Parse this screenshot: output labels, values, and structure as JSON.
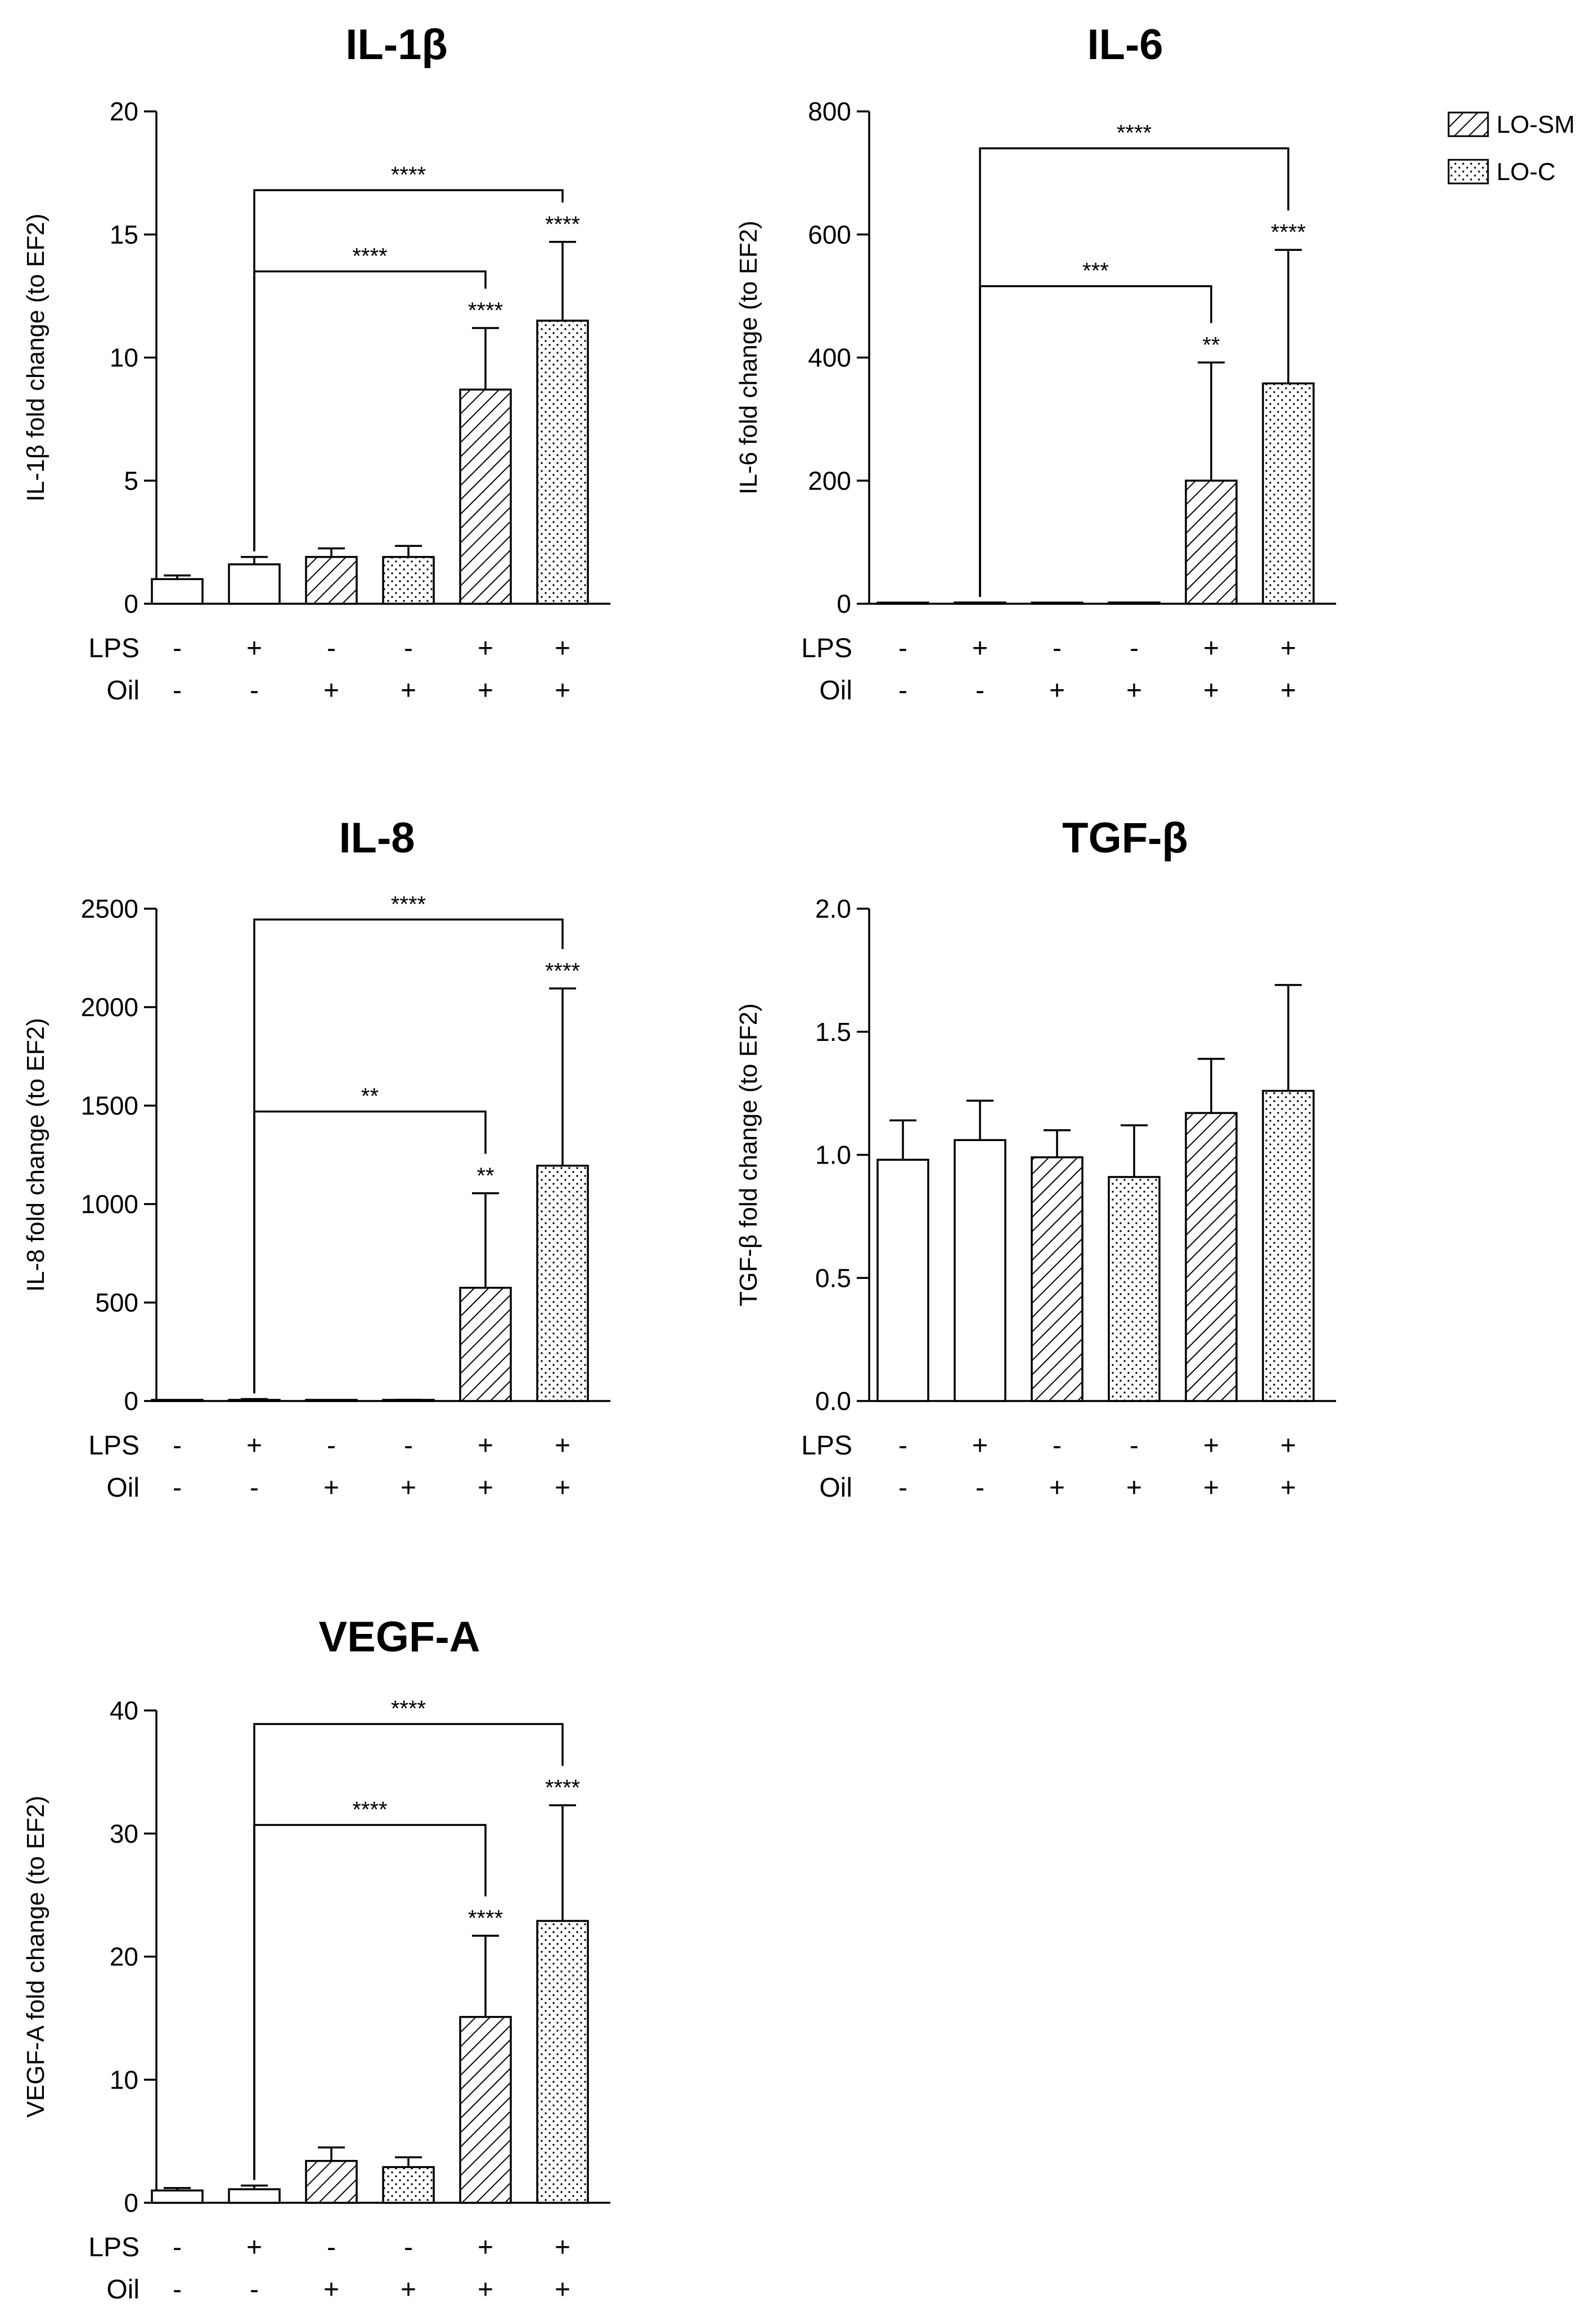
{
  "legend": {
    "items": [
      {
        "label": "LO-SM",
        "pattern": "hatch"
      },
      {
        "label": "LO-C",
        "pattern": "dots"
      }
    ]
  },
  "row_labels": {
    "lps": "LPS",
    "oil": "Oil"
  },
  "conditions": {
    "lps": [
      "-",
      "+",
      "-",
      "-",
      "+",
      "+"
    ],
    "oil": [
      "-",
      "-",
      "+",
      "+",
      "+",
      "+"
    ]
  },
  "colors": {
    "ink": "#000000",
    "bar_fill": "#ffffff"
  },
  "chart_data": [
    {
      "id": "il1b",
      "type": "bar",
      "title": "IL-1β",
      "ylabel": "IL-1β fold change (to EF2)",
      "ylim": [
        0,
        20
      ],
      "yticks": [
        0,
        5,
        10,
        15,
        20
      ],
      "ytick_labels": [
        "0",
        "5",
        "10",
        "15",
        "20"
      ],
      "values": [
        1.0,
        1.6,
        1.9,
        1.9,
        8.7,
        11.5
      ],
      "errors": [
        0.15,
        0.3,
        0.35,
        0.45,
        2.5,
        3.2
      ],
      "bar_stars": [
        "",
        "",
        "",
        "",
        "****",
        "****"
      ],
      "brackets": [
        {
          "from": 1,
          "to": 4,
          "y": 13.5,
          "label": "****"
        },
        {
          "from": 1,
          "to": 5,
          "y": 16.8,
          "label": "****"
        }
      ]
    },
    {
      "id": "il6",
      "type": "bar",
      "title": "IL-6",
      "ylabel": "IL-6 fold change (to EF2)",
      "ylim": [
        0,
        800
      ],
      "yticks": [
        0,
        200,
        400,
        600,
        800
      ],
      "ytick_labels": [
        "0",
        "200",
        "400",
        "600",
        "800"
      ],
      "values": [
        1,
        2,
        1.5,
        2,
        200,
        358
      ],
      "errors": [
        0,
        0,
        0,
        0,
        192,
        217
      ],
      "bar_stars": [
        "",
        "",
        "",
        "",
        "**",
        "****"
      ],
      "brackets": [
        {
          "from": 1,
          "to": 4,
          "y": 516,
          "label": "***"
        },
        {
          "from": 1,
          "to": 5,
          "y": 740,
          "label": "****"
        }
      ]
    },
    {
      "id": "il8",
      "type": "bar",
      "title": "IL-8",
      "ylabel": "IL-8 fold change (to EF2)",
      "ylim": [
        0,
        2500
      ],
      "yticks": [
        0,
        500,
        1000,
        1500,
        2000,
        2500
      ],
      "ytick_labels": [
        "0",
        "500",
        "1000",
        "1500",
        "2000",
        "2500"
      ],
      "values": [
        0,
        5,
        2,
        3,
        575,
        1195
      ],
      "errors": [
        0,
        5,
        0,
        3,
        480,
        900
      ],
      "bar_stars": [
        "",
        "",
        "",
        "",
        "**",
        "****"
      ],
      "brackets": [
        {
          "from": 1,
          "to": 4,
          "y": 1470,
          "label": "**"
        },
        {
          "from": 1,
          "to": 5,
          "y": 2445,
          "label": "****"
        }
      ]
    },
    {
      "id": "tgfb",
      "type": "bar",
      "title": "TGF-β",
      "ylabel": "TGF-β fold change (to EF2)",
      "ylim": [
        0,
        2
      ],
      "yticks": [
        0,
        0.5,
        1,
        1.5,
        2
      ],
      "ytick_labels": [
        "0.0",
        "0.5",
        "1.0",
        "1.5",
        "2.0"
      ],
      "values": [
        0.98,
        1.06,
        0.99,
        0.91,
        1.17,
        1.26
      ],
      "errors": [
        0.16,
        0.16,
        0.11,
        0.21,
        0.22,
        0.43
      ],
      "bar_stars": [
        "",
        "",
        "",
        "",
        "",
        ""
      ],
      "brackets": []
    },
    {
      "id": "vegfa",
      "type": "bar",
      "title": "VEGF-A",
      "ylabel": "VEGF-A fold change (to EF2)",
      "ylim": [
        0,
        40
      ],
      "yticks": [
        0,
        10,
        20,
        30,
        40
      ],
      "ytick_labels": [
        "0",
        "10",
        "20",
        "30",
        "40"
      ],
      "values": [
        1.0,
        1.1,
        3.4,
        2.9,
        15.1,
        22.9
      ],
      "errors": [
        0.2,
        0.3,
        1.1,
        0.8,
        6.6,
        9.4
      ],
      "bar_stars": [
        "",
        "",
        "",
        "",
        "****",
        "****"
      ],
      "brackets": [
        {
          "from": 1,
          "to": 4,
          "y": 30.7,
          "label": "****"
        },
        {
          "from": 1,
          "to": 5,
          "y": 38.9,
          "label": "****"
        }
      ]
    }
  ]
}
